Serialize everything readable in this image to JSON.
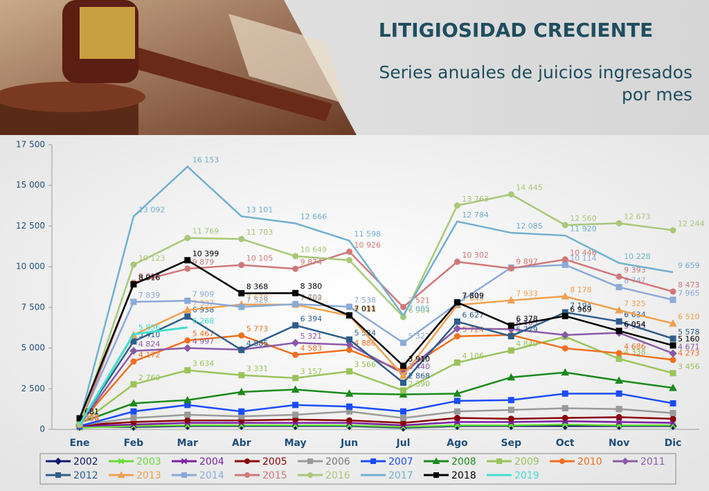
{
  "header": {
    "title": "LITIGIOSIDAD CRECIENTE",
    "subtitle": [
      "Series anuales de juicios ingresados",
      "por mes"
    ]
  },
  "chart_data": {
    "type": "line",
    "categories": [
      "Ene",
      "Feb",
      "Mar",
      "Abr",
      "May",
      "Jun",
      "Jul",
      "Ago",
      "Sep",
      "Oct",
      "Nov",
      "Dic"
    ],
    "ylim": [
      0,
      17500
    ],
    "yticks": [
      0,
      {
        "value": 2500,
        "label": "2 500"
      },
      {
        "value": 5000,
        "label": "5 000"
      },
      {
        "value": 7500,
        "label": "7 500"
      },
      {
        "value": 10000,
        "label": "10 000"
      },
      {
        "value": 12500,
        "label": "12 500"
      },
      {
        "value": 15000,
        "label": "15 000"
      },
      {
        "value": 17500,
        "label": "17 500"
      }
    ],
    "grid": false,
    "legend": "bottom",
    "series": [
      {
        "name": "2002",
        "color": "#0d1a6b",
        "marker": "diamond",
        "values": [
          150,
          150,
          200,
          200,
          200,
          200,
          100,
          200,
          200,
          200,
          200,
          200
        ]
      },
      {
        "name": "2003",
        "color": "#66dd33",
        "marker": "x",
        "values": [
          100,
          200,
          250,
          250,
          250,
          250,
          150,
          250,
          250,
          300,
          250,
          250
        ]
      },
      {
        "name": "2004",
        "color": "#7b1fa2",
        "marker": "x",
        "values": [
          200,
          300,
          400,
          400,
          400,
          400,
          250,
          450,
          450,
          500,
          450,
          400
        ]
      },
      {
        "name": "2005",
        "color": "#8b0000",
        "marker": "circle",
        "values": [
          250,
          450,
          550,
          550,
          600,
          550,
          400,
          700,
          650,
          700,
          750,
          650
        ]
      },
      {
        "name": "2006",
        "color": "#999999",
        "marker": "square",
        "values": [
          250,
          700,
          900,
          800,
          900,
          1100,
          700,
          1100,
          1200,
          1300,
          1250,
          1000
        ]
      },
      {
        "name": "2007",
        "color": "#1a4cff",
        "marker": "square",
        "values": [
          200,
          1100,
          1500,
          1100,
          1500,
          1400,
          1100,
          1750,
          1800,
          2200,
          2200,
          1600
        ]
      },
      {
        "name": "2008",
        "color": "#1a8a1a",
        "marker": "triangle",
        "values": [
          400,
          1600,
          1800,
          2300,
          2450,
          2200,
          2150,
          2200,
          3200,
          3500,
          3000,
          2550
        ]
      },
      {
        "name": "2009",
        "color": "#99c45a",
        "marker": "square",
        "values": [
          300,
          2769,
          3634,
          3331,
          3157,
          3566,
          2390,
          4106,
          4849,
          5700,
          4338,
          3456
        ],
        "value_labels": [
          null,
          "2 769",
          "3 634",
          "3 331",
          "3 157",
          "3 566",
          "2 390",
          "4 106",
          "4 849",
          null,
          "4 338",
          "3 456"
        ]
      },
      {
        "name": "2010",
        "color": "#f07020",
        "marker": "circle",
        "values": [
          358,
          4172,
          5467,
          5773,
          4583,
          4886,
          3600,
          5724,
          5800,
          4980,
          4686,
          4273
        ],
        "value_labels": [
          "358",
          "4 172",
          "5 467",
          "5 773",
          "4 583",
          "4 886",
          null,
          "5 724",
          null,
          null,
          "4 686",
          "4 273"
        ]
      },
      {
        "name": "2011",
        "color": "#8a5aa8",
        "marker": "diamond",
        "values": [
          300,
          4824,
          4997,
          4900,
          5321,
          5200,
          3440,
          6200,
          6163,
          5800,
          5935,
          4671
        ],
        "value_labels": [
          null,
          "4 824",
          "4 997",
          null,
          "5 321",
          null,
          "3 440",
          null,
          "6 163",
          null,
          "5 935",
          "4 671"
        ]
      },
      {
        "name": "2012",
        "color": "#2e5d8a",
        "marker": "square",
        "values": [
          350,
          5410,
          6938,
          4885,
          6394,
          5524,
          2868,
          6627,
          5729,
          7194,
          6634,
          5578
        ],
        "value_labels": [
          null,
          "5 410",
          "6 938",
          "4 885",
          "6 394",
          "5 524",
          "2 868",
          "6 627",
          "5 729",
          "7 194",
          "6 634",
          "5 578"
        ]
      },
      {
        "name": "2013",
        "color": "#f0a050",
        "marker": "triangle",
        "values": [
          296,
          5800,
          7337,
          7678,
          7669,
          6998,
          3300,
          7645,
          7933,
          8178,
          7325,
          6510
        ],
        "value_labels": [
          "296",
          null,
          "7 337",
          "7 678",
          "7 669",
          "6 998",
          null,
          "7 645",
          "7 933",
          "8 178",
          "7 325",
          "6 510"
        ]
      },
      {
        "name": "2014",
        "color": "#8aaad8",
        "marker": "square",
        "values": [
          400,
          7839,
          7909,
          7529,
          7702,
          7538,
          5322,
          7745,
          9950,
          10114,
          8747,
          7965
        ],
        "value_labels": [
          null,
          "7 839",
          "7 909",
          "7 529",
          "7 702",
          "7 538",
          "5 322",
          "7 745",
          null,
          "10 114",
          "8 747",
          "7 965"
        ]
      },
      {
        "name": "2015",
        "color": "#d07878",
        "marker": "circle",
        "values": [
          256,
          9012,
          9879,
          10105,
          9874,
          10926,
          7521,
          10302,
          9897,
          10446,
          9393,
          8473
        ],
        "value_labels": [
          "256",
          "9 012",
          "9 879",
          "10 105",
          "9 874",
          "10 926",
          "7 521",
          "10 302",
          "9 897",
          "10 446",
          "9 393",
          "8 473"
        ]
      },
      {
        "name": "2016",
        "color": "#a8c878",
        "marker": "circle",
        "values": [
          300,
          10123,
          11769,
          11703,
          10649,
          10400,
          6904,
          13763,
          14445,
          12560,
          12673,
          12244
        ],
        "value_labels": [
          null,
          "10 123",
          "11 769",
          "11 703",
          "10 649",
          null,
          "6 904",
          "13 763",
          "14 445",
          "12 560",
          "12 673",
          "12 244"
        ]
      },
      {
        "name": "2017",
        "color": "#70b0d0",
        "marker": "none",
        "values": [
          500,
          13092,
          16153,
          13101,
          12666,
          11598,
          7005,
          12784,
          12085,
          11920,
          10228,
          9659
        ],
        "value_labels": [
          null,
          "13 092",
          "16 153",
          "13 101",
          "12 666",
          "11 598",
          "7 005",
          "12 784",
          "12 085",
          "11 920",
          "10 228",
          "9 659"
        ]
      },
      {
        "name": "2018",
        "color": "#000000",
        "marker": "square",
        "values": [
          681,
          8916,
          10399,
          8368,
          8380,
          7011,
          3910,
          7809,
          6378,
          6969,
          6054,
          5160
        ],
        "value_labels": [
          "681",
          "8 916",
          "10 399",
          "8 368",
          "8 380",
          "7 011",
          "3 910",
          "7 809",
          "6 378",
          "6 969",
          "6 054",
          "5 160"
        ]
      },
      {
        "name": "2019",
        "color": "#40e0d0",
        "marker": "none",
        "values": [
          300,
          5856,
          6268,
          null,
          null,
          null,
          null,
          null,
          null,
          null,
          null,
          null
        ],
        "value_labels": [
          null,
          "5 856",
          "6 268",
          null,
          null,
          null,
          null,
          null,
          null,
          null,
          null,
          null
        ]
      }
    ]
  }
}
